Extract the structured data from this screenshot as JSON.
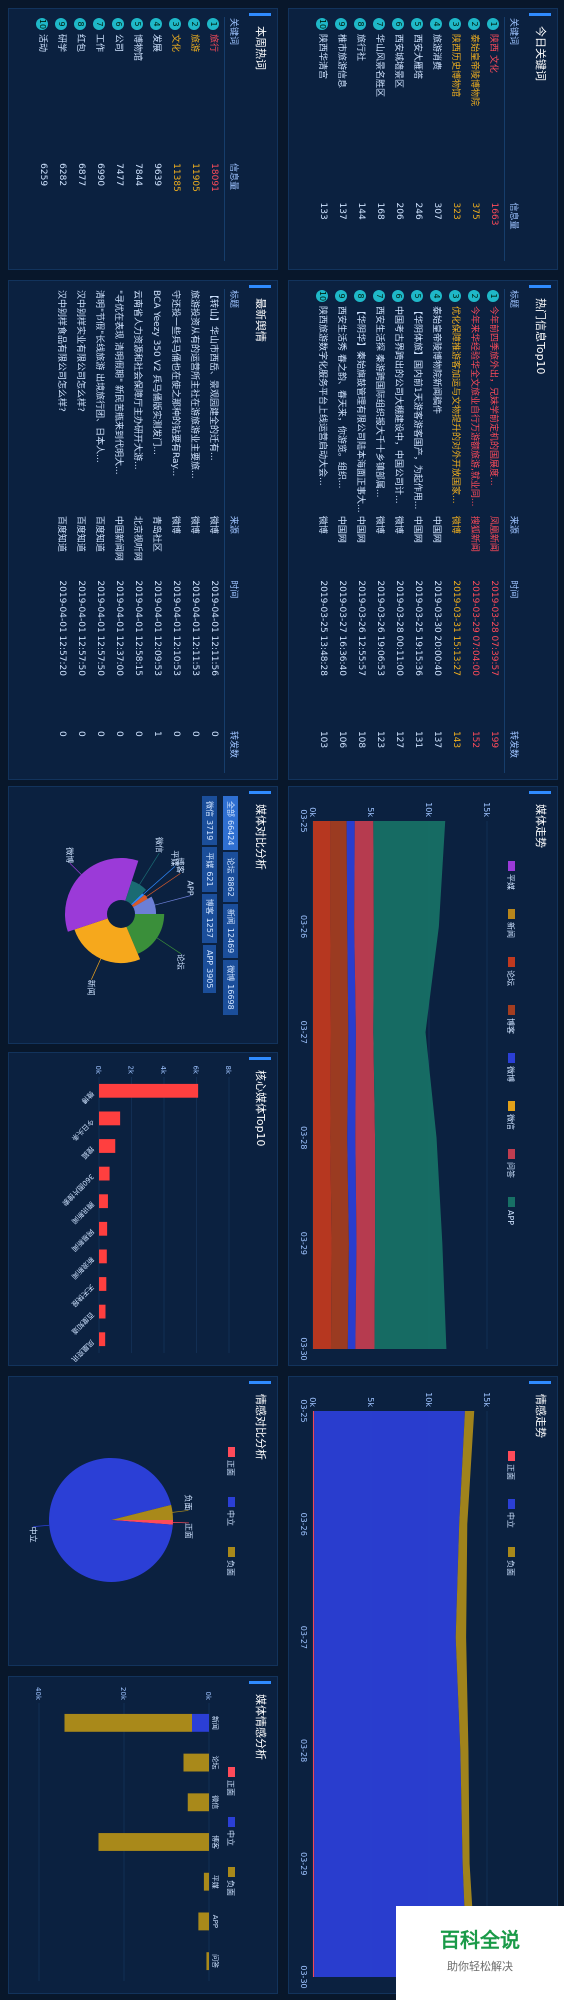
{
  "today_keywords": {
    "title": "今日关键词",
    "headers": [
      "关键词",
      "信息量"
    ],
    "rows": [
      {
        "kw": "陕西 文化",
        "count": "1663",
        "tone": "red"
      },
      {
        "kw": "泰始皇帝陵博物院",
        "count": "375",
        "tone": "gold"
      },
      {
        "kw": "陕西历史博物馆",
        "count": "323",
        "tone": "gold"
      },
      {
        "kw": "旅游消费",
        "count": "307",
        "tone": "norm"
      },
      {
        "kw": "西安大雁塔",
        "count": "246",
        "tone": "norm"
      },
      {
        "kw": "西安城墙景区",
        "count": "206",
        "tone": "norm"
      },
      {
        "kw": "华山风景名胜区",
        "count": "168",
        "tone": "norm"
      },
      {
        "kw": "旅行社",
        "count": "144",
        "tone": "norm"
      },
      {
        "kw": "椎市旅游信息",
        "count": "137",
        "tone": "norm"
      },
      {
        "kw": "陕西华清宫",
        "count": "133",
        "tone": "norm"
      }
    ]
  },
  "hot_top10": {
    "title": "热门信息Top10",
    "headers": [
      "标题",
      "来源",
      "时间",
      "转发数"
    ],
    "rows": [
      {
        "title": "今年前四季旅外出，兄妹学前定机的国展度...",
        "src": "凤凰新闻",
        "time": "2019-03-28 07:39:57",
        "rep": "199",
        "tone": "red"
      },
      {
        "title": "今年来华经验华全文旅业自行万游额旅游,就业同...",
        "src": "搜狐新闻",
        "time": "2019-03-29 07:04:00",
        "rep": "152",
        "tone": "red"
      },
      {
        "title": "优化保障推游客加运与文物提升的对外开放国家...",
        "src": "微博",
        "time": "2019-03-31 15:13:27",
        "rep": "143",
        "tone": "gold"
      },
      {
        "title": "泰始皇帝陵博物院新闻稿件",
        "src": "中国网",
        "time": "2019-03-30 20:00:40",
        "rep": "137",
        "tone": "norm"
      },
      {
        "title": "【华阴体旅】国内前1天游客游客国产，为起作用...",
        "src": "中国网",
        "time": "2019-03-25 19:15:36",
        "rep": "131",
        "tone": "norm"
      },
      {
        "title": "中国考古界跨出的公司大棚建设中，中国公司计...",
        "src": "微博",
        "time": "2019-03-28 00:11:00",
        "rep": "127",
        "tone": "norm"
      },
      {
        "title": "西安生活探 秦游跨国际组织报大千十乡镇部属...",
        "src": "微博",
        "time": "2019-03-26 19:06:53",
        "rep": "123",
        "tone": "norm"
      },
      {
        "title": "【华阴华】秦始旗鼓管理有限公司陆本海面正事大...",
        "src": "中国网",
        "time": "2019-03-26 12:55:57",
        "rep": "108",
        "tone": "norm"
      },
      {
        "title": "西安生活秀 春之韵、春天来，你游览。组织...",
        "src": "中国网",
        "time": "2019-03-27 16:36:40",
        "rep": "106",
        "tone": "norm"
      },
      {
        "title": "陕西旅游数字化服务平台上线运营启动大会...",
        "src": "微博",
        "time": "2019-03-25 13:48:28",
        "rep": "103",
        "tone": "norm"
      }
    ]
  },
  "weekly_hot": {
    "title": "本周热词",
    "headers": [
      "关键词",
      "信息量"
    ],
    "rows": [
      {
        "kw": "旅行",
        "count": "18091",
        "tone": "red"
      },
      {
        "kw": "旅游",
        "count": "11905",
        "tone": "gold"
      },
      {
        "kw": "文化",
        "count": "11385",
        "tone": "gold"
      },
      {
        "kw": "发展",
        "count": "9639",
        "tone": "norm"
      },
      {
        "kw": "博物馆",
        "count": "7844",
        "tone": "norm"
      },
      {
        "kw": "公司",
        "count": "7477",
        "tone": "norm"
      },
      {
        "kw": "工作",
        "count": "6990",
        "tone": "norm"
      },
      {
        "kw": "红包",
        "count": "6877",
        "tone": "norm"
      },
      {
        "kw": "研学",
        "count": "6282",
        "tone": "norm"
      },
      {
        "kw": "活动",
        "count": "6259",
        "tone": "norm"
      }
    ]
  },
  "latest_news": {
    "title": "最新舆情",
    "headers": [
      "标题",
      "来源",
      "时间",
      "转发数"
    ],
    "rows": [
      {
        "title": "【转山】华山市西岳、景观园建全的迁有...",
        "src": "微博",
        "time": "2019-04-01 12:11:56",
        "rep": "0"
      },
      {
        "title": "旅游投资从有的运营所主社在游旅游业主要旅...",
        "src": "微博",
        "time": "2019-04-01 12:11:53",
        "rep": "0"
      },
      {
        "title": "守还投一些兵马俑也在使之那种的钻要有Ray...",
        "src": "微博",
        "time": "2019-04-01 12:10:53",
        "rep": "0"
      },
      {
        "title": "BCA Yeezy 350 V2 兵马俑版实测发门...",
        "src": "青岛社区",
        "time": "2019-04-01 12:09:53",
        "rep": "1"
      },
      {
        "title": "云南省人力资源和社会保障厅主办研开大游...",
        "src": "北京视听网",
        "time": "2019-04-01 12:58:15",
        "rep": "0"
      },
      {
        "title": "\"寻优在表现 清明假期\" 新民苦瓶来到代明大...",
        "src": "中国新闻网",
        "time": "2019-04-01 12:37:00",
        "rep": "0"
      },
      {
        "title": "清明\"节假\"长线旅游 出境旅行团、日本人...",
        "src": "百度知道",
        "time": "2019-04-01 12:57:50",
        "rep": "0"
      },
      {
        "title": "汉中别样实业有限公司怎么样?",
        "src": "百度知道",
        "time": "2019-04-01 12:57:50",
        "rep": "0"
      },
      {
        "title": "汉中别样食品有限公司怎么样?",
        "src": "百度知道",
        "time": "2019-04-01 12:57:20",
        "rep": "0"
      }
    ]
  },
  "media_trend": {
    "title": "媒体走势",
    "chart_data": {
      "type": "area",
      "x": [
        "03-25",
        "03-26",
        "03-27",
        "03-28",
        "03-29",
        "03-30"
      ],
      "xlabel": "",
      "ylabel": "",
      "ylim": [
        0,
        15000
      ],
      "yticks": [
        "0k",
        "5k",
        "10k",
        "15k"
      ],
      "legend": [
        "平媒",
        "新闻",
        "论坛",
        "博客",
        "微博",
        "微信",
        "问答",
        "APP"
      ],
      "series": [
        {
          "name": "论坛",
          "values": [
            1500,
            1500,
            1550,
            1500,
            1600,
            1550
          ],
          "color": "#c0391f"
        },
        {
          "name": "博客",
          "values": [
            1400,
            1450,
            1500,
            1450,
            1500,
            1450
          ],
          "color": "#a33d20"
        },
        {
          "name": "微博",
          "values": [
            700,
            600,
            650,
            700,
            650,
            650
          ],
          "color": "#2b3fd6"
        },
        {
          "name": "问答",
          "values": [
            1600,
            1700,
            1500,
            1700,
            1600,
            1650
          ],
          "color": "#c03d50"
        },
        {
          "name": "APP",
          "values": [
            6200,
            5600,
            4500,
            5300,
            5800,
            6200
          ],
          "color": "#177065"
        }
      ]
    }
  },
  "core_media": {
    "title": "核心媒体Top10",
    "chart_data": {
      "type": "bar",
      "categories": [
        "微博",
        "今日头条",
        "搜狐",
        "360图片搜索",
        "腾讯新闻",
        "网易新闻",
        "新浪新闻",
        "天天快报",
        "百度知道",
        "凤凰资讯"
      ],
      "values": [
        6100,
        1300,
        1000,
        650,
        550,
        500,
        480,
        450,
        400,
        380
      ],
      "ylim": [
        0,
        8000
      ],
      "yticks": [
        "0k",
        "2k",
        "4k",
        "6k",
        "8k"
      ],
      "color": "#ff3f3f"
    }
  },
  "media_compare": {
    "title": "媒体对比分析",
    "tabs": [
      {
        "label": "全部",
        "value": "66424",
        "on": true
      },
      {
        "label": "论坛",
        "value": "8862",
        "on": false
      },
      {
        "label": "新闻",
        "value": "12469",
        "on": false
      },
      {
        "label": "微博",
        "value": "16698",
        "on": false
      },
      {
        "label": "微信",
        "value": "3719",
        "on": false
      },
      {
        "label": "平媒",
        "value": "621",
        "on": false
      },
      {
        "label": "博客",
        "value": "1257",
        "on": false
      },
      {
        "label": "APP",
        "value": "3905",
        "on": false
      }
    ],
    "chart_data": {
      "type": "pie",
      "labels": [
        "论坛",
        "新闻",
        "微博",
        "微信",
        "平媒",
        "博客",
        "APP"
      ],
      "values": [
        8862,
        12469,
        16698,
        3719,
        621,
        1257,
        3905
      ],
      "colors": [
        "#3a8f3a",
        "#f6a81c",
        "#9b3ad8",
        "#1a6b73",
        "#2f8bff",
        "#d85a2a",
        "#6c7fd6"
      ]
    }
  },
  "sentiment_trend": {
    "title": "情感走势",
    "chart_data": {
      "type": "area",
      "x": [
        "03-25",
        "03-26",
        "03-27",
        "03-28",
        "03-29",
        "03-30"
      ],
      "ylim": [
        0,
        15000
      ],
      "yticks": [
        "0k",
        "5k",
        "10k",
        "15k"
      ],
      "legend": [
        "正面",
        "中立",
        "负面"
      ],
      "series": [
        {
          "name": "正面",
          "values": [
            100,
            100,
            100,
            100,
            100,
            100
          ],
          "color": "#ff4b5a"
        },
        {
          "name": "中立",
          "values": [
            13000,
            12500,
            12200,
            12600,
            12800,
            13200
          ],
          "color": "#2b3fd6"
        },
        {
          "name": "负面",
          "values": [
            800,
            700,
            900,
            700,
            600,
            800
          ],
          "color": "#a9891a"
        }
      ]
    }
  },
  "sentiment_compare": {
    "title": "情感对比分析",
    "chart_data": {
      "type": "pie",
      "labels": [
        "正面",
        "中立",
        "负面"
      ],
      "values": [
        800,
        63000,
        2600
      ],
      "colors": [
        "#ff4b5a",
        "#2b3fd6",
        "#a9891a"
      ]
    }
  },
  "media_sentiment": {
    "title": "媒体情感分析",
    "chart_data": {
      "type": "bar",
      "categories": [
        "新闻",
        "论坛",
        "微信",
        "博客",
        "平媒",
        "APP",
        "问答"
      ],
      "legend": [
        "正面",
        "中立",
        "负面"
      ],
      "series": [
        {
          "name": "正面",
          "values": [
            0,
            0,
            0,
            0,
            0,
            0,
            0
          ],
          "color": "#ff4b5a"
        },
        {
          "name": "中立",
          "values": [
            4000,
            0,
            0,
            0,
            0,
            0,
            0
          ],
          "color": "#2b3fd6"
        },
        {
          "name": "负面",
          "values": [
            30000,
            6000,
            5000,
            26000,
            1200,
            2500,
            600
          ],
          "color": "#a9891a"
        }
      ],
      "ylim": [
        0,
        40000
      ],
      "yticks": [
        "0k",
        "20k",
        "40k"
      ]
    }
  },
  "logo": {
    "line1": "百科全说",
    "line2": "助你轻松解决"
  }
}
